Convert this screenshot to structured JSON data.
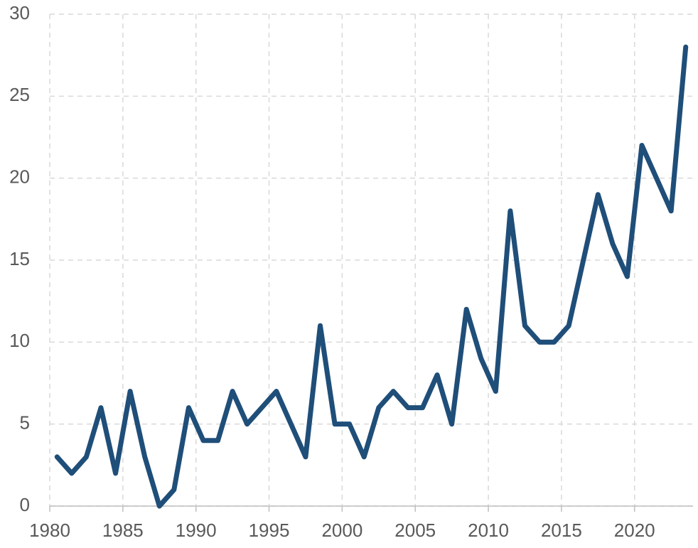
{
  "chart_data": {
    "type": "line",
    "x": [
      1980.5,
      1981.5,
      1982.5,
      1983.5,
      1984.5,
      1985.5,
      1986.5,
      1987.5,
      1988.5,
      1989.5,
      1990.5,
      1991.5,
      1992.5,
      1993.5,
      1994.5,
      1995.5,
      1996.5,
      1997.5,
      1998.5,
      1999.5,
      2000.5,
      2001.5,
      2002.5,
      2003.5,
      2004.5,
      2005.5,
      2006.5,
      2007.5,
      2008.5,
      2009.5,
      2010.5,
      2011.5,
      2012.5,
      2013.5,
      2014.5,
      2015.5,
      2016.5,
      2017.5,
      2018.5,
      2019.5,
      2020.5,
      2021.5,
      2022.5,
      2023.5
    ],
    "values": [
      3,
      2,
      3,
      6,
      2,
      7,
      3,
      0,
      1,
      6,
      4,
      4,
      7,
      5,
      6,
      7,
      5,
      3,
      11,
      5,
      5,
      3,
      6,
      7,
      6,
      6,
      8,
      5,
      12,
      9,
      7,
      18,
      11,
      10,
      10,
      11,
      15,
      19,
      16,
      14,
      22,
      20,
      18,
      28
    ],
    "color": "#1f4e79",
    "xlim": [
      1980,
      2024
    ],
    "xticks": [
      1980,
      1985,
      1990,
      1995,
      2000,
      2005,
      2010,
      2015,
      2020
    ],
    "ylim": [
      0,
      30
    ],
    "yticks": [
      0,
      5,
      10,
      15,
      20,
      25,
      30
    ],
    "grid": true
  }
}
